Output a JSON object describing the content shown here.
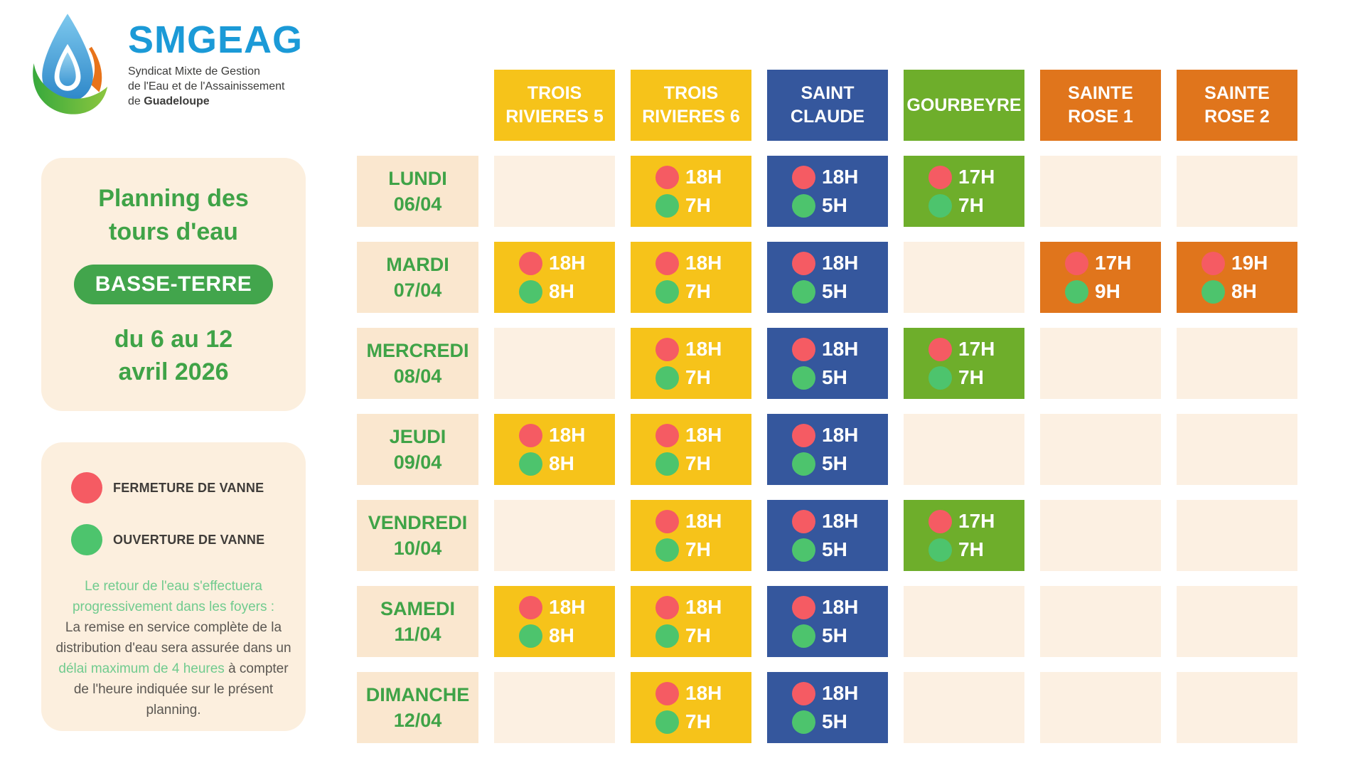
{
  "colors": {
    "yellow": "#F6C31A",
    "blue": "#35579D",
    "green": "#6EAE2B",
    "orange": "#E0751C",
    "cream_cell": "#FCF0E2",
    "cream_label": "#FAE7CF",
    "cream_panel": "#FCEFDE",
    "green_text": "#3FA347",
    "badge_green": "#42A54C",
    "light_green_text": "#70CB8E",
    "close_red": "#F55B63",
    "open_green": "#4DC46D",
    "logo_blue": "#1B9AD7"
  },
  "logo": {
    "title": "SMGEAG",
    "subtitle_line1": "Syndicat Mixte de Gestion",
    "subtitle_line2": "de l'Eau et de l'Assainissement",
    "subtitle_line3_prefix": "de ",
    "subtitle_line3_bold": "Guadeloupe"
  },
  "title_panel": {
    "title_line1": "Planning des",
    "title_line2": "tours d'eau",
    "badge": "BASSE-TERRE",
    "period_line1": "du 6 au 12",
    "period_line2": "avril 2026"
  },
  "legend_panel": {
    "items": [
      {
        "id": "fermeture",
        "color": "#F55B63",
        "label": "FERMETURE DE VANNE"
      },
      {
        "id": "ouverture",
        "color": "#4DC46D",
        "label": "OUVERTURE DE VANNE"
      }
    ],
    "note_green_1": "Le retour de l'eau s'effectuera progressivement dans les foyers :",
    "note_dark_1": "La remise en service complète de la distribution d'eau sera assurée dans un ",
    "note_green_2": "délai maximum de 4 heures",
    "note_dark_2": " à compter de l'heure indiquée sur le présent planning."
  },
  "schedule": {
    "columns": [
      {
        "id": "trois-rivieres-5",
        "label_lines": [
          "TROIS",
          "RIVIERES 5"
        ],
        "color": "#F6C31A"
      },
      {
        "id": "trois-rivieres-6",
        "label_lines": [
          "TROIS",
          "RIVIERES 6"
        ],
        "color": "#F6C31A"
      },
      {
        "id": "saint-claude",
        "label_lines": [
          "SAINT",
          "CLAUDE"
        ],
        "color": "#35579D"
      },
      {
        "id": "gourbeyre",
        "label_lines": [
          "GOURBEYRE"
        ],
        "color": "#6EAE2B"
      },
      {
        "id": "sainte-rose-1",
        "label_lines": [
          "SAINTE",
          "ROSE 1"
        ],
        "color": "#E0751C"
      },
      {
        "id": "sainte-rose-2",
        "label_lines": [
          "SAINTE",
          "ROSE 2"
        ],
        "color": "#E0751C"
      }
    ],
    "rows": [
      {
        "day": "LUNDI",
        "date": "06/04",
        "cells": [
          null,
          {
            "close": "18H",
            "open": "7H"
          },
          {
            "close": "18H",
            "open": "5H"
          },
          {
            "close": "17H",
            "open": "7H"
          },
          null,
          null
        ]
      },
      {
        "day": "MARDI",
        "date": "07/04",
        "cells": [
          {
            "close": "18H",
            "open": "8H"
          },
          {
            "close": "18H",
            "open": "7H"
          },
          {
            "close": "18H",
            "open": "5H"
          },
          null,
          {
            "close": "17H",
            "open": "9H"
          },
          {
            "close": "19H",
            "open": "8H"
          }
        ]
      },
      {
        "day": "MERCREDI",
        "date": "08/04",
        "cells": [
          null,
          {
            "close": "18H",
            "open": "7H"
          },
          {
            "close": "18H",
            "open": "5H"
          },
          {
            "close": "17H",
            "open": "7H"
          },
          null,
          null
        ]
      },
      {
        "day": "JEUDI",
        "date": "09/04",
        "cells": [
          {
            "close": "18H",
            "open": "8H"
          },
          {
            "close": "18H",
            "open": "7H"
          },
          {
            "close": "18H",
            "open": "5H"
          },
          null,
          null,
          null
        ]
      },
      {
        "day": "VENDREDI",
        "date": "10/04",
        "cells": [
          null,
          {
            "close": "18H",
            "open": "7H"
          },
          {
            "close": "18H",
            "open": "5H"
          },
          {
            "close": "17H",
            "open": "7H"
          },
          null,
          null
        ]
      },
      {
        "day": "SAMEDI",
        "date": "11/04",
        "cells": [
          {
            "close": "18H",
            "open": "8H"
          },
          {
            "close": "18H",
            "open": "7H"
          },
          {
            "close": "18H",
            "open": "5H"
          },
          null,
          null,
          null
        ]
      },
      {
        "day": "DIMANCHE",
        "date": "12/04",
        "cells": [
          null,
          {
            "close": "18H",
            "open": "7H"
          },
          {
            "close": "18H",
            "open": "5H"
          },
          null,
          null,
          null
        ]
      }
    ]
  }
}
